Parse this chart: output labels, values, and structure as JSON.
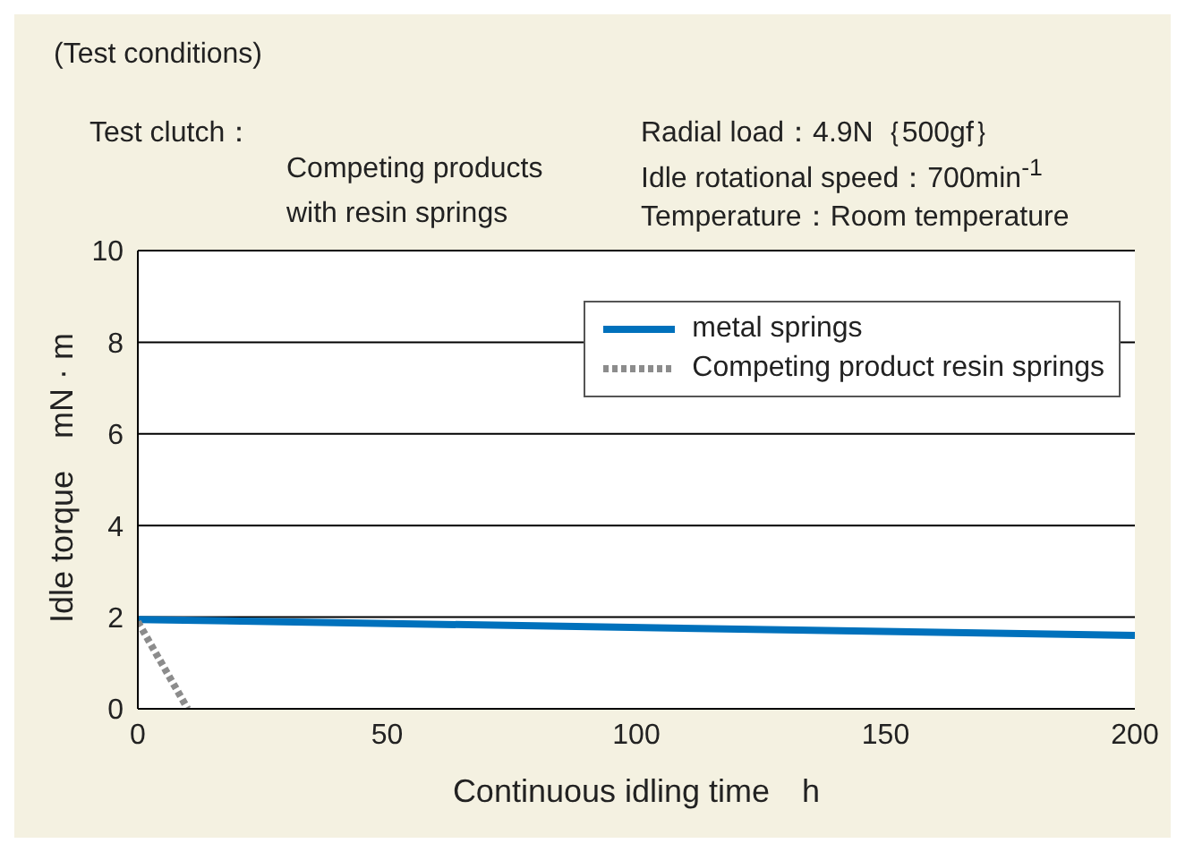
{
  "chart_data": {
    "type": "line",
    "xlabel": "Continuous idling time　h",
    "ylabel": "Idle torque　mN · m",
    "annotations": [
      "(Test conditions)",
      "Test clutch：",
      "Competing products",
      "with resin springs",
      "Radial load：4.9N｛500gf｝",
      "Idle rotational speed：700min$^{-1}$",
      "Temperature：Room temperature"
    ],
    "series": [
      {
        "name": "metal springs",
        "color": "#0071bc",
        "x": [
          0,
          200
        ],
        "values": [
          1.95,
          1.6
        ],
        "line_style": "solid"
      },
      {
        "name": "Competing product resin springs",
        "color": "#8c8c8c",
        "x": [
          0,
          10
        ],
        "values": [
          1.9,
          0
        ],
        "line_style": "dotted"
      }
    ],
    "xlim": [
      0,
      200
    ],
    "xticks": [
      0,
      50,
      100,
      150,
      200
    ],
    "ylim": [
      0,
      10
    ],
    "yticks": [
      0,
      2,
      4,
      6,
      8,
      10
    ],
    "grid": "y",
    "legend": "top right",
    "marker": "none"
  }
}
